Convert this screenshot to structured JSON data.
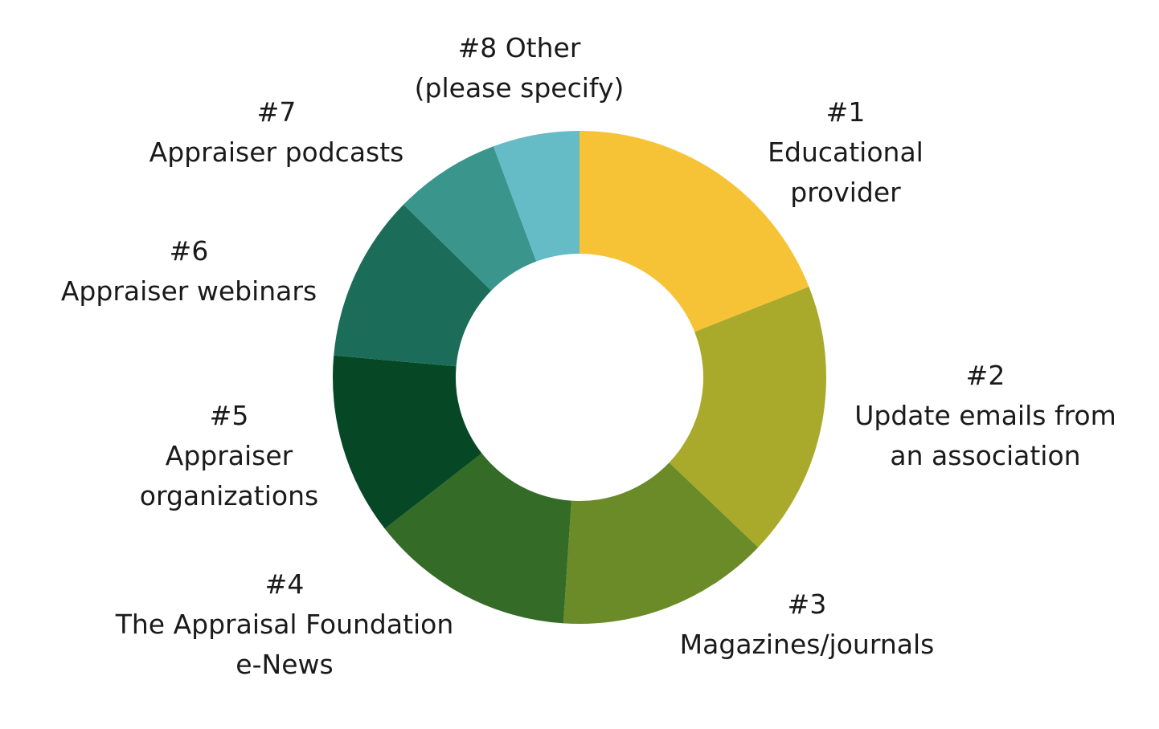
{
  "chart_data": {
    "type": "pie",
    "donut": true,
    "legend": "none",
    "slices": [
      {
        "rank": "#1",
        "label": "Educational provider",
        "lines": [
          "#1",
          "Educational",
          "provider"
        ],
        "value": 19.1,
        "color": "#F6C336"
      },
      {
        "rank": "#2",
        "label": "Update emails from an association",
        "lines": [
          "#2",
          "Update emails from",
          "an association"
        ],
        "value": 18.2,
        "color": "#A9AA2C"
      },
      {
        "rank": "#3",
        "label": "Magazines/journals",
        "lines": [
          "#3",
          "Magazines/journals"
        ],
        "value": 14.0,
        "color": "#6A8B28"
      },
      {
        "rank": "#4",
        "label": "The Appraisal Foundation e-News",
        "lines": [
          "#4",
          "The Appraisal Foundation",
          "e-News"
        ],
        "value": 13.5,
        "color": "#336B27"
      },
      {
        "rank": "#5",
        "label": "Appraiser organizations",
        "lines": [
          "#5",
          "Appraiser",
          "organizations"
        ],
        "value": 12.0,
        "color": "#064825"
      },
      {
        "rank": "#6",
        "label": "Appraiser webinars",
        "lines": [
          "#6",
          "Appraiser webinars"
        ],
        "value": 11.0,
        "color": "#1B6D59"
      },
      {
        "rank": "#7",
        "label": "Appraiser podcasts",
        "lines": [
          "#7",
          "Appraiser podcasts"
        ],
        "value": 7.0,
        "color": "#3A958C"
      },
      {
        "rank": "#8",
        "label": "Other (please specify)",
        "lines": [
          "#8 Other",
          "(please specify)"
        ],
        "value": 5.7,
        "color": "#65BBC6"
      }
    ]
  }
}
